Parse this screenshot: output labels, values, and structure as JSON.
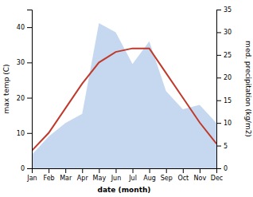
{
  "chart_data": {
    "type": "line",
    "categories": [
      "Jan",
      "Feb",
      "Mar",
      "Apr",
      "May",
      "Jun",
      "Jul",
      "Aug",
      "Sep",
      "Oct",
      "Nov",
      "Dec"
    ],
    "xlabel": "date (month)",
    "ylabel": "max temp (C)",
    "y2label": "med. precipitation (kg/m2)",
    "series": [
      {
        "type": "area",
        "axis": "y2",
        "color": "#c5d8f0",
        "values": [
          3,
          7,
          10,
          12,
          32,
          30,
          23,
          28,
          17,
          13,
          14,
          10
        ]
      },
      {
        "type": "line",
        "color": "#c0392b",
        "values": [
          5,
          10,
          17,
          24,
          30,
          33,
          34,
          34,
          27,
          20,
          13,
          7
        ]
      }
    ],
    "ylim": [
      0,
      45
    ],
    "yticks": [
      0,
      10,
      20,
      30,
      40
    ],
    "y2lim": [
      0,
      35
    ],
    "y2ticks": [
      0,
      5,
      10,
      15,
      20,
      25,
      30,
      35
    ]
  }
}
